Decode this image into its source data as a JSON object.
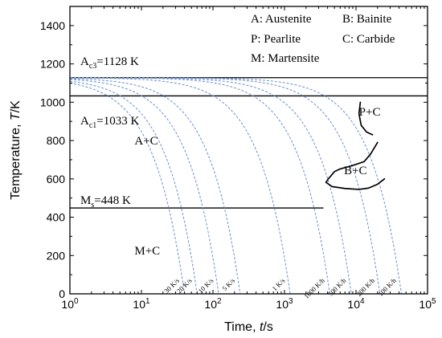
{
  "chart_data": {
    "type": "line",
    "xscale": "log",
    "xlim": [
      1,
      100000
    ],
    "ylim": [
      0,
      1500
    ],
    "xlabel": {
      "main": "Time, ",
      "var": "t",
      "unit": "/s"
    },
    "ylabel": {
      "main": "Temperature, ",
      "var": "T",
      "unit": "/K"
    },
    "x_ticks": [
      {
        "value": 1,
        "base": "10",
        "exp": "0"
      },
      {
        "value": 10,
        "base": "10",
        "exp": "1"
      },
      {
        "value": 100,
        "base": "10",
        "exp": "2"
      },
      {
        "value": 1000,
        "base": "10",
        "exp": "3"
      },
      {
        "value": 10000,
        "base": "10",
        "exp": "4"
      },
      {
        "value": 100000,
        "base": "10",
        "exp": "5"
      }
    ],
    "y_ticks": [
      0,
      200,
      400,
      600,
      800,
      1000,
      1200,
      1400
    ],
    "start_temperature": 1128,
    "reference_lines": [
      {
        "name": "Ac3",
        "value": 1128,
        "x_end": 100000,
        "label_main": "A",
        "label_sub": "c3",
        "label_rest": "=1128 K",
        "label_x": 1.4,
        "label_y": 1195
      },
      {
        "name": "Ac1",
        "value": 1033,
        "x_end": 100000,
        "label_main": "A",
        "label_sub": "c1",
        "label_rest": "=1033 K",
        "label_x": 1.4,
        "label_y": 885
      },
      {
        "name": "Ms",
        "value": 448,
        "x_end": 3500,
        "label_main": "M",
        "label_sub": "s",
        "label_rest": "=448 K",
        "label_x": 1.4,
        "label_y": 470
      }
    ],
    "cooling_curves": [
      {
        "label": "30 K/s",
        "end_time": 40
      },
      {
        "label": "20 K/s",
        "end_time": 60
      },
      {
        "label": "10 K/s",
        "end_time": 120
      },
      {
        "label": "5 K/s",
        "end_time": 240
      },
      {
        "label": "1 K/s",
        "end_time": 1200
      },
      {
        "label": "1000 K/h",
        "end_time": 4300
      },
      {
        "label": "500 K/h",
        "end_time": 8600
      },
      {
        "label": "200 K/h",
        "end_time": 21600
      },
      {
        "label": "100 K/h",
        "end_time": 43200
      }
    ],
    "regions": [
      {
        "name": "P+C",
        "points": [
          [
            11500,
            1000
          ],
          [
            11000,
            940
          ],
          [
            11800,
            880
          ],
          [
            14000,
            845
          ],
          [
            17000,
            830
          ]
        ]
      },
      {
        "name": "B+C",
        "points": [
          [
            20000,
            790
          ],
          [
            16000,
            730
          ],
          [
            13000,
            690
          ],
          [
            9000,
            670
          ],
          [
            6000,
            652
          ],
          [
            5000,
            638
          ],
          [
            4600,
            622
          ],
          [
            4100,
            600
          ],
          [
            3800,
            582
          ],
          [
            4600,
            560
          ],
          [
            7000,
            550
          ],
          [
            11000,
            545
          ],
          [
            15000,
            552
          ],
          [
            20000,
            572
          ],
          [
            25000,
            600
          ]
        ]
      }
    ],
    "annotations": [
      {
        "text": "A+C",
        "x": 8,
        "y": 780
      },
      {
        "text": "P+C",
        "x": 11000,
        "y": 930
      },
      {
        "text": "B+C",
        "x": 6800,
        "y": 625
      },
      {
        "text": "M+C",
        "x": 8,
        "y": 205
      }
    ],
    "legend": [
      "A: Austenite",
      "B: Bainite",
      "P: Pearlite",
      "C: Carbide",
      "M: Martensite"
    ]
  }
}
